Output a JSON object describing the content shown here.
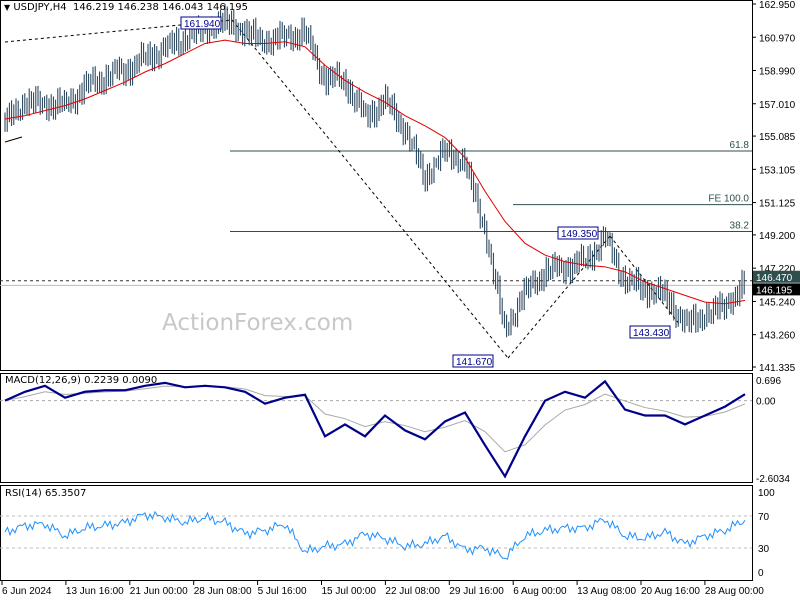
{
  "header": {
    "symbol_label": "USDJPY,H4",
    "ohlc": "146.219 146.238 146.043 146.195"
  },
  "watermark": "ActionForex.com",
  "colors": {
    "price": "#1b3a52",
    "ma": "#e00000",
    "macd": "#00008b",
    "signal": "#a9a9a9",
    "rsi": "#1e90ff",
    "fib": "#2f4f4f",
    "box": "#00008b"
  },
  "annotations": {
    "high": "161.940",
    "low": "141.670",
    "swing_high": "149.350",
    "swing_low": "143.430",
    "fib_618": "61.8",
    "fib_382": "38.2",
    "fe_100": "FE 100.0"
  },
  "chart_data": [
    {
      "type": "line",
      "title": "USDJPY,H4",
      "price_ticks": [
        "162.950",
        "160.970",
        "158.990",
        "157.010",
        "155.085",
        "153.105",
        "151.125",
        "149.200",
        "147.220",
        "145.240",
        "143.260",
        "141.335"
      ],
      "current_price": "146.195",
      "marked_price": "146.470",
      "levels": {
        "fib_618": 154.2,
        "fe_100": 151.0,
        "fib_382": 149.4
      },
      "ylim": [
        141.335,
        162.95
      ],
      "x_ticks": [
        "6 Jun 2024",
        "13 Jun 16:00",
        "21 Jun 00:00",
        "28 Jun 08:00",
        "5 Jul 16:00",
        "15 Jul 00:00",
        "22 Jul 08:00",
        "29 Jul 16:00",
        "6 Aug 00:00",
        "13 Aug 08:00",
        "20 Aug 16:00",
        "28 Aug 00:00"
      ],
      "close": [
        156.0,
        157.1,
        157.0,
        156.9,
        158.0,
        158.6,
        159.0,
        159.7,
        160.3,
        160.9,
        161.5,
        161.9,
        161.3,
        160.7,
        161.0,
        161.2,
        158.5,
        158.4,
        156.2,
        157.2,
        155.5,
        152.6,
        154.2,
        153.5,
        149.5,
        143.5,
        145.8,
        147.0,
        147.3,
        147.6,
        149.0,
        146.5,
        146.0,
        145.6,
        143.9,
        144.4,
        145.0,
        146.2
      ],
      "ma": [
        156.1,
        156.3,
        156.6,
        156.9,
        157.3,
        157.8,
        158.3,
        158.9,
        159.4,
        160.0,
        160.6,
        160.8,
        160.6,
        160.6,
        160.7,
        160.4,
        159.3,
        158.4,
        157.7,
        157.1,
        156.3,
        155.7,
        155.0,
        153.8,
        151.8,
        150.0,
        148.7,
        148.0,
        147.6,
        147.4,
        147.3,
        147.0,
        146.4,
        146.0,
        145.6,
        145.2,
        145.1,
        145.3
      ]
    },
    {
      "type": "line",
      "title": "MACD(12,26,9) 0.2239 0.0090",
      "y_ticks": [
        "0.696",
        "0.00",
        "-2.6034"
      ],
      "ylim": [
        -2.6034,
        0.696
      ],
      "macd": [
        0.0,
        0.3,
        0.5,
        0.1,
        0.3,
        0.35,
        0.35,
        0.5,
        0.6,
        0.45,
        0.5,
        0.45,
        0.3,
        -0.1,
        0.1,
        0.2,
        -1.2,
        -0.8,
        -1.2,
        -0.5,
        -1.0,
        -1.3,
        -0.7,
        -0.4,
        -1.5,
        -2.55,
        -1.2,
        0.0,
        0.3,
        0.1,
        0.65,
        -0.3,
        -0.5,
        -0.5,
        -0.8,
        -0.5,
        -0.2,
        0.22
      ]
    },
    {
      "type": "line",
      "title": "RSI(14) 65.3507",
      "y_ticks": [
        "100",
        "70",
        "30",
        "0"
      ],
      "ylim": [
        0,
        100
      ],
      "levels": [
        70,
        30
      ],
      "rsi": [
        50,
        58,
        60,
        45,
        55,
        58,
        62,
        72,
        68,
        62,
        68,
        62,
        48,
        52,
        60,
        25,
        32,
        35,
        48,
        42,
        32,
        35,
        45,
        28,
        30,
        18,
        45,
        52,
        55,
        55,
        66,
        45,
        42,
        50,
        35,
        45,
        52,
        65
      ]
    }
  ]
}
